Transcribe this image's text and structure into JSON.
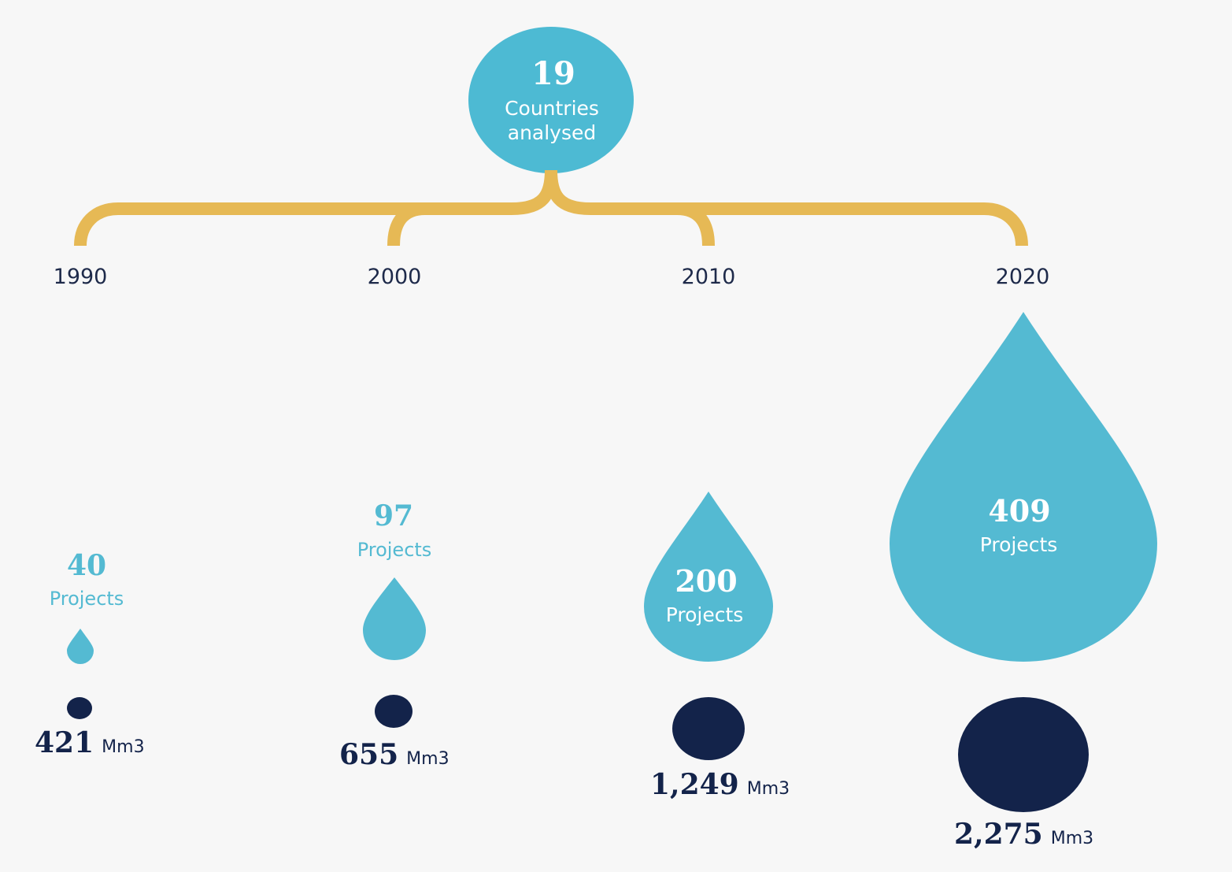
{
  "header": {
    "countries_count": "19",
    "countries_label_line1": "Countries",
    "countries_label_line2": "analysed"
  },
  "years": [
    "1990",
    "2000",
    "2010",
    "2020"
  ],
  "projects": [
    {
      "year": "1990",
      "count": "40",
      "label": "Projects"
    },
    {
      "year": "2000",
      "count": "97",
      "label": "Projects"
    },
    {
      "year": "2010",
      "count": "200",
      "label": "Projects"
    },
    {
      "year": "2020",
      "count": "409",
      "label": "Projects"
    }
  ],
  "volumes": [
    {
      "year": "1990",
      "value": "421",
      "unit": "Mm3"
    },
    {
      "year": "2000",
      "value": "655",
      "unit": "Mm3"
    },
    {
      "year": "2010",
      "value": "1,249",
      "unit": "Mm3"
    },
    {
      "year": "2020",
      "value": "2,275",
      "unit": "Mm3"
    }
  ],
  "colors": {
    "drop": "#54bad2",
    "volume": "#13234a",
    "bracket": "#e6b955",
    "year_text": "#1e2a4a",
    "white": "#ffffff"
  }
}
